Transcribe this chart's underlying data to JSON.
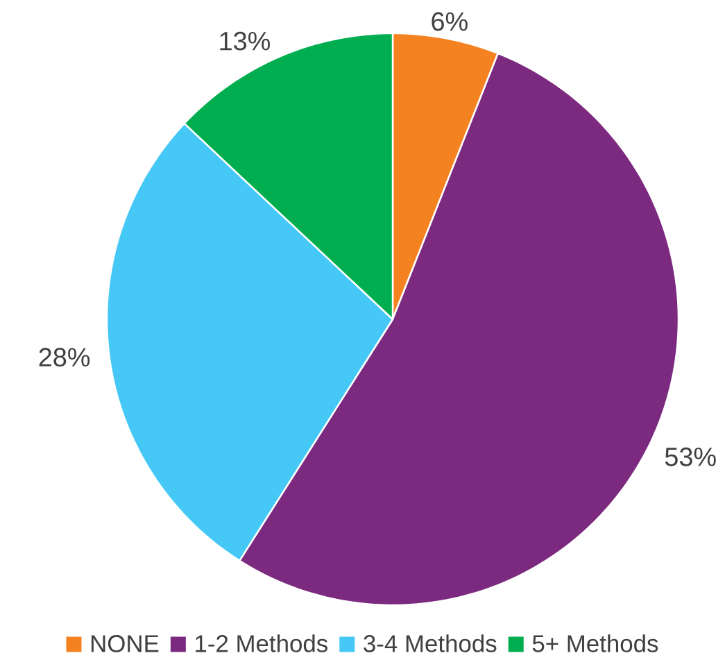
{
  "chart_data": {
    "type": "pie",
    "categories": [
      "NONE",
      "1-2 Methods",
      "3-4 Methods",
      "5+ Methods"
    ],
    "values": [
      6,
      53,
      28,
      13
    ],
    "colors": [
      "#f58220",
      "#7b2a80",
      "#45c8f5",
      "#00ae4f"
    ],
    "value_labels": [
      "6%",
      "53%",
      "28%",
      "13%"
    ],
    "legend": "bottom"
  }
}
